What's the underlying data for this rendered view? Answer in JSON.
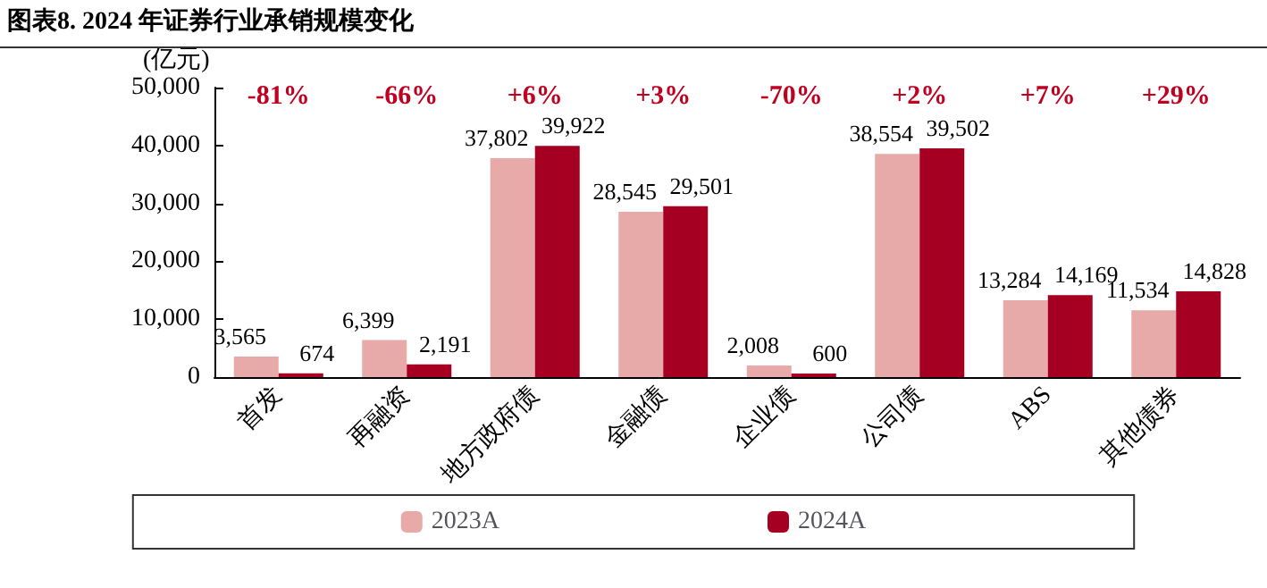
{
  "chart_data": {
    "type": "bar",
    "title": "图表8. 2024 年证券行业承销规模变化",
    "ylabel": "(亿元)",
    "categories": [
      "首发",
      "再融资",
      "地方政府债",
      "金融债",
      "企业债",
      "公司债",
      "ABS",
      "其他债券"
    ],
    "series": [
      {
        "name": "2023A",
        "color": "#e8a9a9",
        "values": [
          3565,
          6399,
          37802,
          28545,
          2008,
          38554,
          13284,
          11534
        ],
        "value_labels": [
          "3,565",
          "6,399",
          "37,802",
          "28,545",
          "2,008",
          "38,554",
          "13,284",
          "11,534"
        ]
      },
      {
        "name": "2024A",
        "color": "#a50021",
        "values": [
          674,
          2191,
          39922,
          29501,
          600,
          39502,
          14169,
          14828
        ],
        "value_labels": [
          "674",
          "2,191",
          "39,922",
          "29,501",
          "600",
          "39,502",
          "14,169",
          "14,828"
        ]
      }
    ],
    "ylim": [
      0,
      50000
    ],
    "yticks": [
      {
        "value": 0,
        "label": "0"
      },
      {
        "value": 10000,
        "label": "10,000"
      },
      {
        "value": 20000,
        "label": "20,000"
      },
      {
        "value": 30000,
        "label": "30,000"
      },
      {
        "value": 40000,
        "label": "40,000"
      },
      {
        "value": 50000,
        "label": "50,000"
      }
    ],
    "annotations": [
      "-81%",
      "-66%",
      "+6%",
      "+3%",
      "-70%",
      "+2%",
      "+7%",
      "+29%"
    ],
    "grid": false,
    "legend": "bottom"
  }
}
